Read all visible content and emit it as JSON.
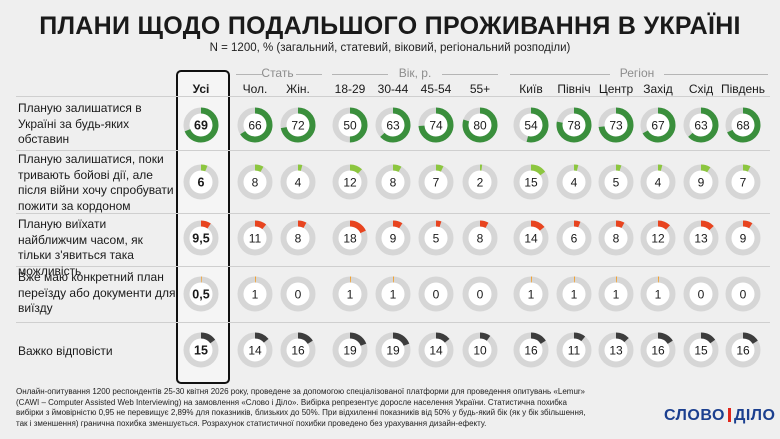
{
  "title": "ПЛАНИ ЩОДО ПОДАЛЬШОГО ПРОЖИВАННЯ В УКРАЇНІ",
  "subtitle": "N = 1200, % (загальний, статевий, віковий, регіональний розподіли)",
  "groups": [
    "Стать",
    "Вік, р.",
    "Регіон"
  ],
  "colors": {
    "all": "#3a8f3c",
    "stay": "#3a8f3c",
    "wait": "#8cc63f",
    "leave": "#e8441f",
    "plan": "#f0a030",
    "unsure": "#3d3d3d",
    "track": "#d6d6d6"
  },
  "footer": "Онлайн-опитування 1200 респондентів 25-30 квітня 2026 року, проведене за допомогою спеціалізованої платформи для проведення опитувань «Lemur» (CAWI – Computer Assisted Web Interviewing) на замовлення «Слово і Діло». Вибірка репрезентує доросле населення України. Статистична похибка вибірки з ймовірністю 0,95 не перевищує 2,89% для показників, близьких до 50%. При відхиленні показників від 50% у будь-який бік (як у бік збільшення, так і зменшення) гранична похибка зменшується. Розрахунок статистичної похибки проведено без урахування дизайн-ефекту.",
  "logo": {
    "left": "СЛОВО",
    "right": "ДІЛО"
  },
  "chart_data": {
    "type": "donut-table",
    "columns": [
      "Усі",
      "Чол.",
      "Жін.",
      "18-29",
      "30-44",
      "45-54",
      "55+",
      "Київ",
      "Північ",
      "Центр",
      "Захід",
      "Схід",
      "Південь"
    ],
    "rows": [
      {
        "label": "Планую залишатися в Україні за будь-яких обставин",
        "color": "#3a8f3c",
        "values": [
          69,
          66,
          72,
          50,
          63,
          74,
          80,
          54,
          78,
          73,
          67,
          63,
          68
        ],
        "labels": [
          "69",
          "66",
          "72",
          "50",
          "63",
          "74",
          "80",
          "54",
          "78",
          "73",
          "67",
          "63",
          "68"
        ]
      },
      {
        "label": "Планую залишатися, поки тривають бойові дії, але після війни хочу спробувати пожити за кордоном",
        "color": "#8cc63f",
        "values": [
          6,
          8,
          4,
          12,
          8,
          7,
          2,
          15,
          4,
          5,
          4,
          9,
          7
        ],
        "labels": [
          "6",
          "8",
          "4",
          "12",
          "8",
          "7",
          "2",
          "15",
          "4",
          "5",
          "4",
          "9",
          "7"
        ]
      },
      {
        "label": "Планую виїхати найближчим часом, як тільки з'явиться така можливість",
        "color": "#e8441f",
        "values": [
          9.5,
          11,
          8,
          18,
          9,
          5,
          8,
          14,
          6,
          8,
          12,
          13,
          9
        ],
        "labels": [
          "9,5",
          "11",
          "8",
          "18",
          "9",
          "5",
          "8",
          "14",
          "6",
          "8",
          "12",
          "13",
          "9"
        ]
      },
      {
        "label": "Вже маю конкретний план переїзду або документи для виїзду",
        "color": "#f0a030",
        "values": [
          0.5,
          1,
          0,
          1,
          1,
          0,
          0,
          1,
          1,
          1,
          1,
          0,
          0
        ],
        "labels": [
          "0,5",
          "1",
          "0",
          "1",
          "1",
          "0",
          "0",
          "1",
          "1",
          "1",
          "1",
          "0",
          "0"
        ]
      },
      {
        "label": "Важко відповісти",
        "color": "#3d3d3d",
        "values": [
          15,
          14,
          16,
          19,
          19,
          14,
          10,
          16,
          11,
          13,
          16,
          15,
          16
        ],
        "labels": [
          "15",
          "14",
          "16",
          "19",
          "19",
          "14",
          "10",
          "16",
          "11",
          "13",
          "16",
          "15",
          "16"
        ]
      }
    ]
  }
}
